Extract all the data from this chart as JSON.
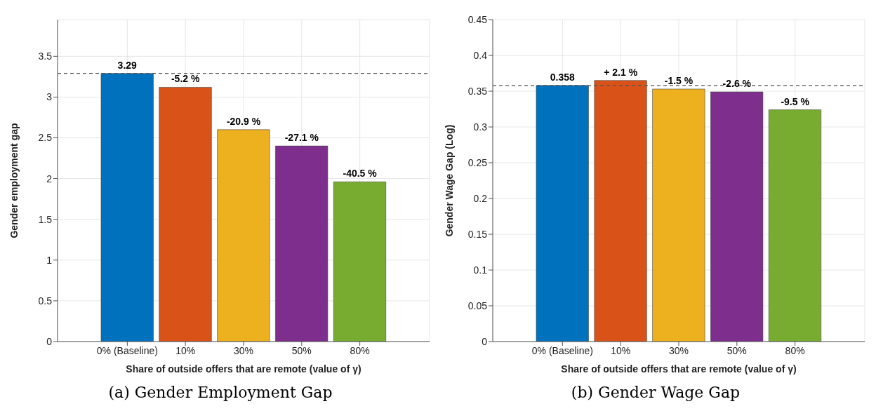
{
  "chart_data": [
    {
      "type": "bar",
      "title": "(a) Gender Employment Gap",
      "xlabel": "Share of outside offers that are remote (value of γ)",
      "ylabel": "Gender employment gap",
      "categories": [
        "0% (Baseline)",
        "10%",
        "30%",
        "50%",
        "80%"
      ],
      "values": [
        3.29,
        3.12,
        2.6,
        2.4,
        1.96
      ],
      "colors": [
        "#0072bd",
        "#d95319",
        "#edb120",
        "#7e2f8e",
        "#77ac30"
      ],
      "value_labels": [
        "3.29",
        null,
        null,
        null,
        null
      ],
      "annotations": [
        {
          "text": "-5.2 %",
          "x": "10%",
          "y": 3.12
        },
        {
          "text": "-20.9 %",
          "x": "30%",
          "y": 2.6
        },
        {
          "text": "-27.1 %",
          "x": "50%",
          "y": 2.4
        },
        {
          "text": "-40.5 %",
          "x": "80%",
          "y": 1.96
        }
      ],
      "ylim": [
        0,
        3.95
      ],
      "yticks": [
        0,
        0.5,
        1,
        1.5,
        2,
        2.5,
        3,
        3.5
      ],
      "grid": true,
      "ref_lines": [
        {
          "axis": "y",
          "value": 3.29,
          "color": "#555555",
          "line_style": "dashed"
        }
      ]
    },
    {
      "type": "bar",
      "title": "(b) Gender Wage Gap",
      "xlabel": "Share of outside offers that are remote (value of γ)",
      "ylabel": "Gender Wage Gap (Log)",
      "categories": [
        "0% (Baseline)",
        "10%",
        "30%",
        "50%",
        "80%"
      ],
      "values": [
        0.358,
        0.365,
        0.353,
        0.349,
        0.324
      ],
      "colors": [
        "#0072bd",
        "#d95319",
        "#edb120",
        "#7e2f8e",
        "#77ac30"
      ],
      "value_labels": [
        "0.358",
        null,
        null,
        null,
        null
      ],
      "annotations": [
        {
          "text": "+ 2.1 %",
          "x": "10%",
          "y": 0.365
        },
        {
          "text": "-1.5 %",
          "x": "30%",
          "y": 0.353
        },
        {
          "text": "-2.6 %",
          "x": "50%",
          "y": 0.349
        },
        {
          "text": "-9.5 %",
          "x": "80%",
          "y": 0.324
        }
      ],
      "ylim": [
        0,
        0.45
      ],
      "yticks": [
        0,
        0.05,
        0.1,
        0.15,
        0.2,
        0.25,
        0.3,
        0.35,
        0.4,
        0.45
      ],
      "grid": true,
      "ref_lines": [
        {
          "axis": "y",
          "value": 0.358,
          "color": "#555555",
          "line_style": "dashed"
        }
      ]
    }
  ]
}
